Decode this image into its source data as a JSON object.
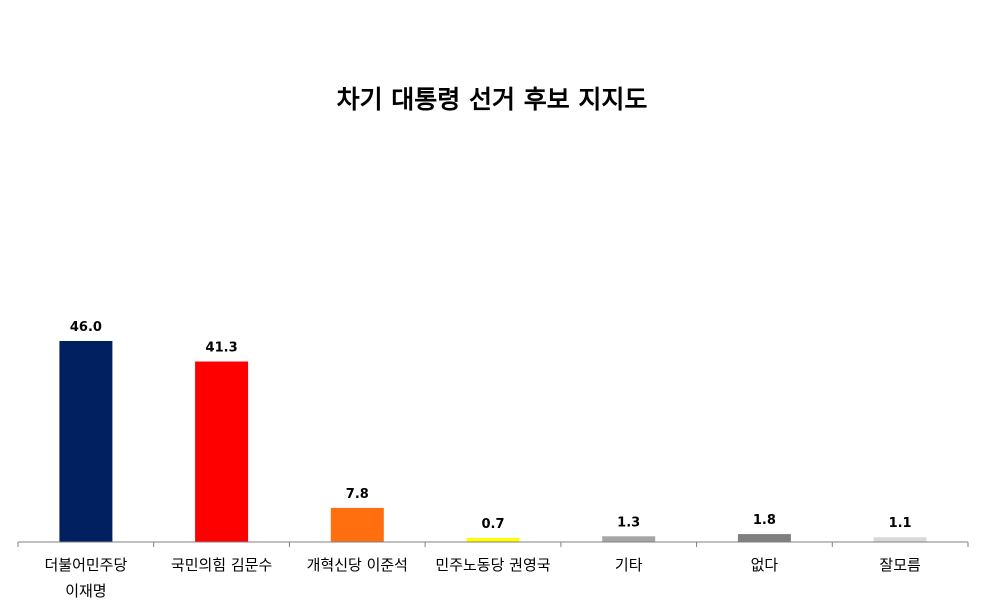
{
  "chart_data": {
    "type": "bar",
    "title": "차기 대통령 선거 후보 지지도",
    "categories": [
      [
        "더불어민주당",
        "이재명"
      ],
      [
        "국민의힘 김문수"
      ],
      [
        "개혁신당 이준석"
      ],
      [
        "민주노동당 권영국"
      ],
      [
        "기타"
      ],
      [
        "없다"
      ],
      [
        "잘모름"
      ]
    ],
    "values": [
      46.0,
      41.3,
      7.8,
      0.7,
      1.3,
      1.8,
      1.1
    ],
    "value_labels": [
      "46.0",
      "41.3",
      "7.8",
      "0.7",
      "1.3",
      "1.8",
      "1.1"
    ],
    "colors": [
      "#002060",
      "#FF0000",
      "#FF6F0F",
      "#FFFF00",
      "#A6A6A6",
      "#7F7F7F",
      "#D9D9D9"
    ],
    "ylim": [
      0,
      60
    ],
    "grid": false,
    "legend": "none",
    "xlabel": "",
    "ylabel": ""
  }
}
